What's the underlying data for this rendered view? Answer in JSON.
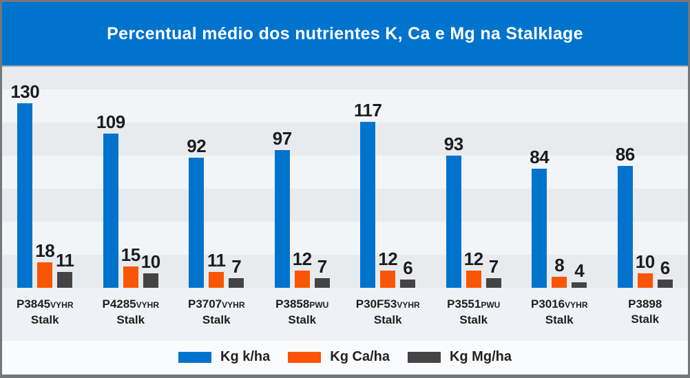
{
  "title": "Percentual médio dos nutrientes K, Ca e Mg na Stalklage",
  "colors": {
    "header_bg": "#0073cd",
    "band_dark": "#e8ebee",
    "band_light": "#f2f5f8",
    "label_area_bg": "#eef1f5",
    "legend_bg": "#fafbfd",
    "frame_border": "#75767a",
    "value_text": "#1c1c1c"
  },
  "chart_data": {
    "type": "bar",
    "title": "Percentual médio dos nutrientes K, Ca e Mg na Stalklage",
    "categories": [
      {
        "name": "P3845",
        "suffix": "VYHR",
        "line2": "Stalk"
      },
      {
        "name": "P4285",
        "suffix": "VYHR",
        "line2": "Stalk"
      },
      {
        "name": "P3707",
        "suffix": "VYHR",
        "line2": "Stalk"
      },
      {
        "name": "P3858",
        "suffix": "PWU",
        "line2": "Stalk"
      },
      {
        "name": "P30F53",
        "suffix": "VYHR",
        "line2": "Stalk"
      },
      {
        "name": "P3551",
        "suffix": "PWU",
        "line2": "Stalk"
      },
      {
        "name": "P3016",
        "suffix": "VYHR",
        "line2": "Stalk"
      },
      {
        "name": "P3898",
        "suffix": "",
        "line2": "Stalk"
      }
    ],
    "series": [
      {
        "name": "Kg k/ha",
        "key": "kg-k",
        "color": "#0073cd",
        "values": [
          130,
          109,
          92,
          97,
          117,
          93,
          84,
          86
        ]
      },
      {
        "name": "Kg Ca/ha",
        "key": "kg-ca",
        "color": "#fa5405",
        "values": [
          18,
          15,
          11,
          12,
          12,
          12,
          8,
          10
        ]
      },
      {
        "name": "Kg Mg/ha",
        "key": "kg-mg",
        "color": "#444444",
        "values": [
          11,
          10,
          7,
          7,
          6,
          7,
          4,
          6
        ]
      }
    ],
    "ylim": [
      0,
      157
    ],
    "grid": "horizontal-bands",
    "legend_position": "bottom",
    "value_labels": "above-bars"
  }
}
